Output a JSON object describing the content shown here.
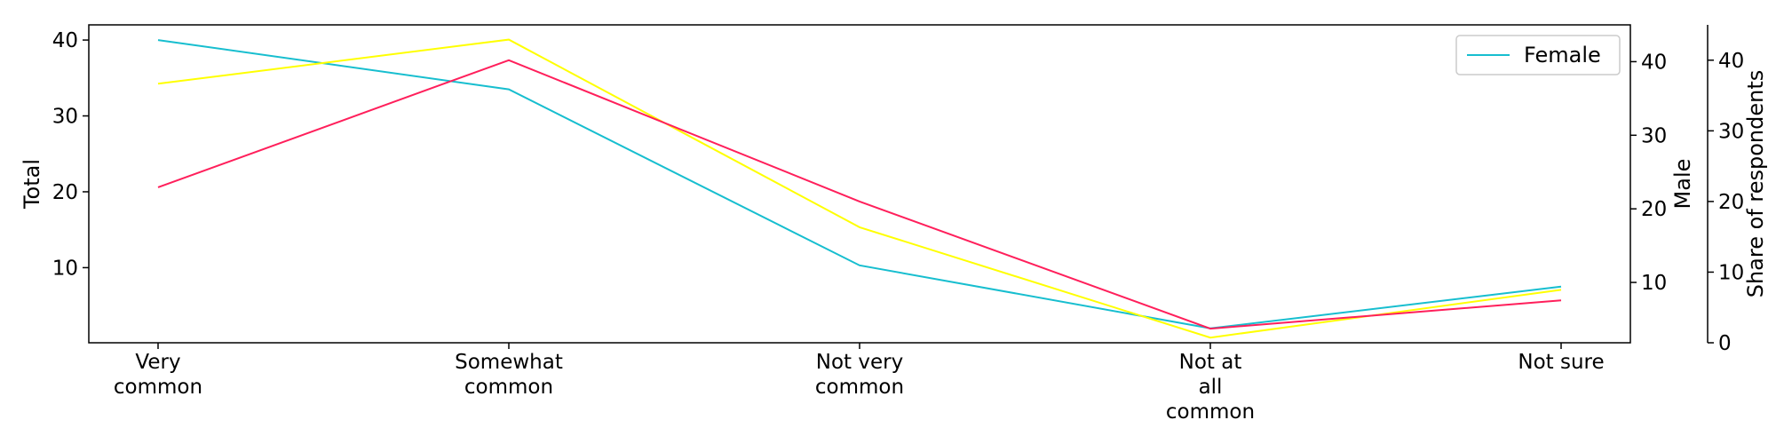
{
  "chart_data": {
    "type": "line",
    "categories": [
      [
        "Very",
        "common"
      ],
      [
        "Somewhat",
        "common"
      ],
      [
        "Not very",
        "common"
      ],
      [
        "Not at",
        "all",
        "common"
      ],
      [
        "Not sure"
      ]
    ],
    "axes": {
      "left": {
        "label": "Total",
        "ticks": [
          10,
          20,
          30,
          40
        ],
        "ylim": [
          0.1,
          42
        ]
      },
      "right1": {
        "label": "Male",
        "ticks": [
          10,
          20,
          30,
          40
        ],
        "ylim": [
          1.8,
          45
        ]
      },
      "right2": {
        "label": "Share of respondents",
        "ticks": [
          0,
          10,
          20,
          30,
          40
        ],
        "ylim": [
          0,
          45
        ]
      }
    },
    "series": [
      {
        "name": "Female",
        "axis": "left",
        "color": "#17becf",
        "values": [
          40,
          33.5,
          10.3,
          2,
          7.5
        ]
      },
      {
        "axis": "right1",
        "color": "#ffff00",
        "values": [
          37,
          43,
          17.5,
          2.5,
          9
        ]
      },
      {
        "axis": "right2",
        "color": "#ff1f5b",
        "values": [
          22,
          40,
          20,
          2,
          6
        ]
      }
    ],
    "legend": {
      "position": "top-right",
      "entries": [
        "Female"
      ]
    },
    "grid": false
  }
}
